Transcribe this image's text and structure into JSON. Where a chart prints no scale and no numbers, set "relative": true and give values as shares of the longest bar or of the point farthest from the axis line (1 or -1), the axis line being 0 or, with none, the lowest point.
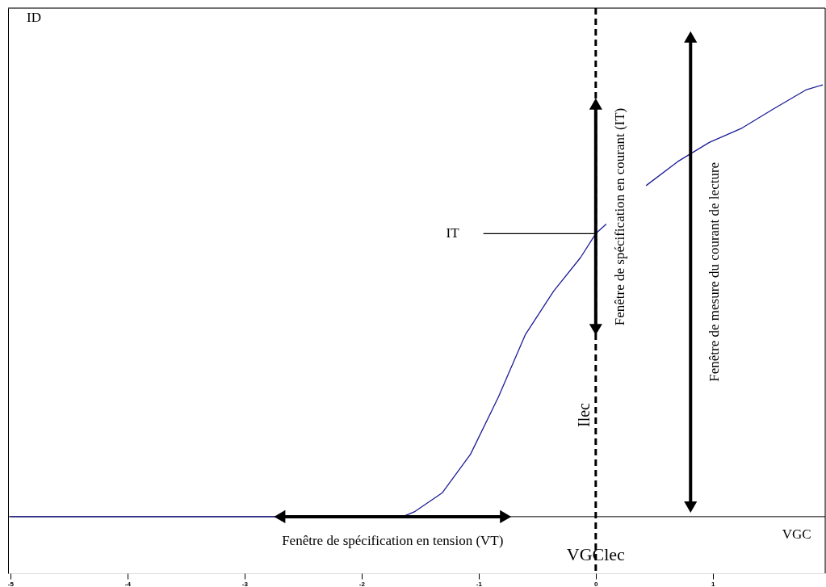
{
  "chart_data": {
    "type": "line",
    "relative": true,
    "xlabel": "VGC",
    "ylabel": "ID",
    "tick_labels": "x",
    "xlim": [
      -5.02,
      1.96
    ],
    "xticks": [
      -5,
      -4,
      -3,
      -2,
      -1,
      0,
      1
    ],
    "series": [
      {
        "color": "#1c1c96",
        "x": [
          -5,
          -3.5,
          -1.65,
          -1.55,
          -1.31,
          -1.07,
          -0.83,
          -0.6,
          -0.36,
          -0.13,
          0,
          0.09,
          null,
          0.43,
          0.7,
          0.97,
          1.25,
          1.52,
          1.8,
          1.94
        ],
        "values": [
          0,
          0,
          0,
          0.01,
          0.05,
          0.13,
          0.25,
          0.38,
          0.47,
          0.54,
          0.59,
          0.61,
          null,
          0.69,
          0.74,
          0.78,
          0.81,
          0.85,
          0.89,
          0.9
        ]
      },
      {
        "name": "IT",
        "color": "#000000",
        "x": [
          -0.96,
          0
        ],
        "values": [
          0.59,
          0.59
        ]
      },
      {
        "name": "Fenêtre de spécification en tension (VT)",
        "color": "#000000",
        "marker": "triangle",
        "x": [
          -2.7,
          -0.77
        ],
        "values": [
          0,
          0
        ]
      },
      {
        "name": "Fenêtre de spécification en courant (IT)",
        "color": "#000000",
        "marker": "triangle",
        "x": [
          0,
          0
        ],
        "values": [
          0.86,
          0.39
        ]
      },
      {
        "name": "Fenêtre de mesure du courant de lecture",
        "color": "#000000",
        "marker": "triangle",
        "x": [
          0.81,
          0.81
        ],
        "values": [
          1.0,
          0.02
        ]
      }
    ],
    "ref_lines": [
      {
        "axis": "x",
        "value": 0,
        "label": "Ilec",
        "line_style": "dashed",
        "color": "#000000"
      }
    ],
    "annotations": [
      {
        "text": "VGClec",
        "x": 0,
        "y": -0.08
      }
    ]
  }
}
